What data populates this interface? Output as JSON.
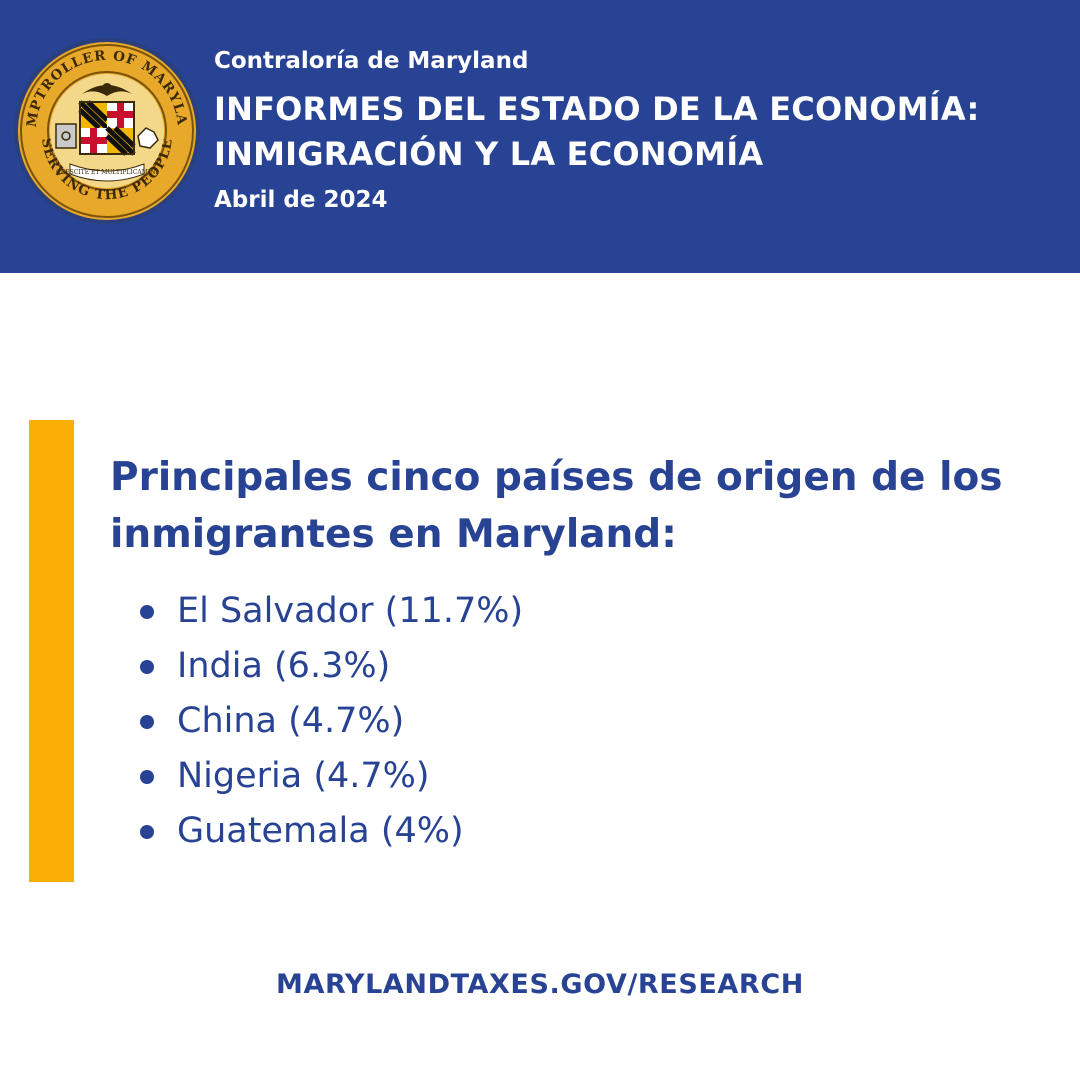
{
  "header": {
    "organization": "Contraloría de Maryland",
    "title_line1": "INFORMES DEL ESTADO DE LA ECONOMÍA:",
    "title_line2": "INMIGRACIÓN Y LA ECONOMÍA",
    "date": "Abril de 2024",
    "seal": {
      "top_text": "COMPTROLLER OF MARYLAND",
      "bottom_text": "SERVING THE PEOPLE",
      "motto": "CRESCITE ET MULTIPLICAMINI"
    }
  },
  "section": {
    "heading": "Principales cinco países de origen de los inmigrantes en Maryland:",
    "items": [
      {
        "label": "El Salvador (11.7%)"
      },
      {
        "label": "India (6.3%)"
      },
      {
        "label": "China (4.7%)"
      },
      {
        "label": "Nigeria (4.7%)"
      },
      {
        "label": "Guatemala (4%)"
      }
    ]
  },
  "footer": {
    "link": "MARYLANDTAXES.GOV/RESEARCH"
  },
  "colors": {
    "brand_blue": "#284394",
    "accent_gold": "#fbae04",
    "seal_gold": "#e8a82a",
    "background": "#ffffff"
  }
}
